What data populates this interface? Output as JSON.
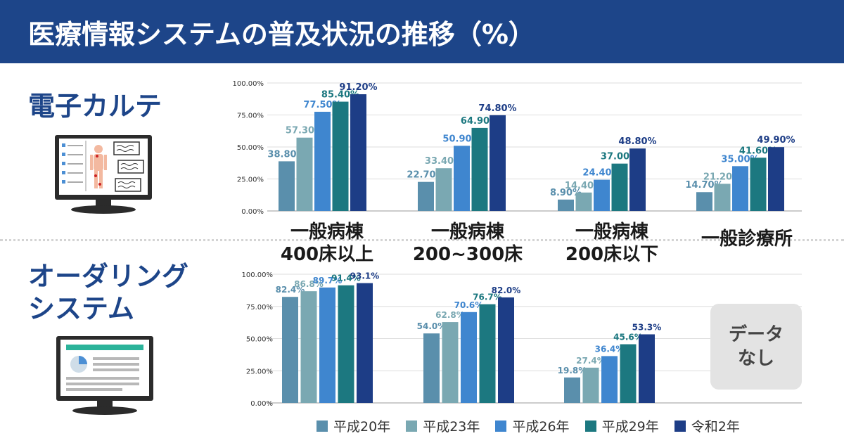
{
  "header": {
    "title": "医療情報システムの普及状況の推移（%）"
  },
  "sections": {
    "ehr": {
      "title": "電子カルテ",
      "icon": "ehr-monitor-icon"
    },
    "ordering": {
      "title": "オーダリングシステム",
      "icon": "ordering-monitor-icon"
    }
  },
  "groups": [
    {
      "label": "一般病棟\n400床以上"
    },
    {
      "label": "一般病棟\n200~300床"
    },
    {
      "label": "一般病棟\n200床以下"
    },
    {
      "label": "一般診療所"
    }
  ],
  "no_data": {
    "label": "データなし"
  },
  "legend": [
    {
      "label": "平成20年",
      "color": "#5a8fac"
    },
    {
      "label": "平成23年",
      "color": "#7aa8b2"
    },
    {
      "label": "平成26年",
      "color": "#3f86cf"
    },
    {
      "label": "平成29年",
      "color": "#1c7880"
    },
    {
      "label": "令和2年",
      "color": "#1d3d86"
    }
  ],
  "chart_data": [
    {
      "type": "bar",
      "title": "電子カルテ",
      "categories": [
        "一般病棟 400床以上",
        "一般病棟 200~300床",
        "一般病棟 200床以下",
        "一般診療所"
      ],
      "series": [
        {
          "name": "平成20年",
          "values": [
            38.8,
            22.7,
            8.9,
            14.7
          ],
          "labels": [
            "38.80%",
            "22.70%",
            "8.90%",
            "14.70%"
          ]
        },
        {
          "name": "平成23年",
          "values": [
            57.3,
            33.4,
            14.4,
            21.2
          ],
          "labels": [
            "57.30%",
            "33.40%",
            "14.40%",
            "21.20%"
          ]
        },
        {
          "name": "平成26年",
          "values": [
            77.5,
            50.9,
            24.4,
            35.0
          ],
          "labels": [
            "77.50%",
            "50.90%",
            "24.40%",
            "35.00%"
          ]
        },
        {
          "name": "平成29年",
          "values": [
            85.4,
            64.9,
            37.0,
            41.6
          ],
          "labels": [
            "85.40%",
            "64.90%",
            "37.00%",
            "41.60%"
          ]
        },
        {
          "name": "令和2年",
          "values": [
            91.2,
            74.8,
            48.8,
            49.9
          ],
          "labels": [
            "91.20%",
            "74.80%",
            "48.80%",
            "49.90%"
          ]
        }
      ],
      "yticks": [
        "0.00%",
        "25.00%",
        "50.00%",
        "75.00%",
        "100.00%"
      ],
      "ylim": [
        0,
        100
      ],
      "grid": true
    },
    {
      "type": "bar",
      "title": "オーダリングシステム",
      "categories": [
        "一般病棟 400床以上",
        "一般病棟 200~300床",
        "一般病棟 200床以下"
      ],
      "series": [
        {
          "name": "平成20年",
          "values": [
            82.4,
            54.0,
            19.8
          ],
          "labels": [
            "82.4%",
            "54.0%",
            "19.8%"
          ]
        },
        {
          "name": "平成23年",
          "values": [
            86.8,
            62.8,
            27.4
          ],
          "labels": [
            "86.8%",
            "62.8%",
            "27.4%"
          ]
        },
        {
          "name": "平成26年",
          "values": [
            89.7,
            70.6,
            36.4
          ],
          "labels": [
            "89.7%",
            "70.6%",
            "36.4%"
          ]
        },
        {
          "name": "平成29年",
          "values": [
            91.4,
            76.7,
            45.6
          ],
          "labels": [
            "91.4%",
            "76.7%",
            "45.6%"
          ]
        },
        {
          "name": "令和2年",
          "values": [
            93.1,
            82.0,
            53.3
          ],
          "labels": [
            "93.1%",
            "82.0%",
            "53.3%"
          ]
        }
      ],
      "yticks": [
        "0.00%",
        "25.00%",
        "50.00%",
        "75.00%",
        "100.00%"
      ],
      "ylim": [
        0,
        100
      ],
      "grid": true
    }
  ]
}
